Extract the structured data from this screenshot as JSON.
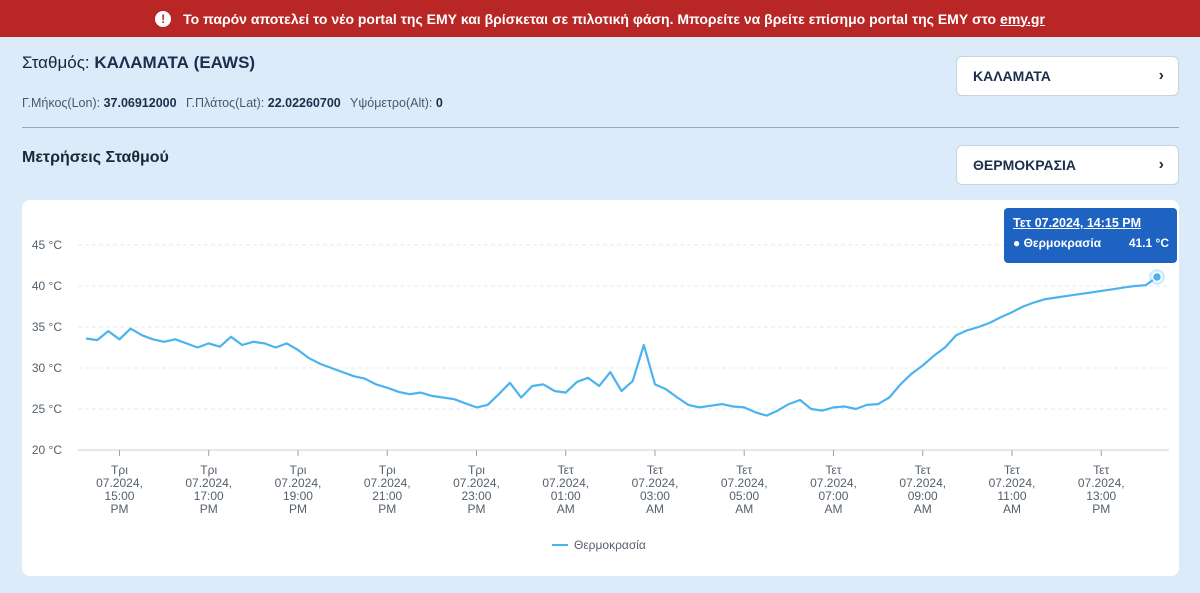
{
  "banner": {
    "icon": "exclamation-icon",
    "text": "Το παρόν αποτελεί το νέο portal της ΕΜΥ και βρίσκεται σε πιλοτική φάση. Μπορείτε να βρείτε επίσημο portal της ΕΜΥ στο",
    "link": "emy.gr",
    "color": "#b82626"
  },
  "station": {
    "label": "Σταθμός:",
    "name": "ΚΑΛΑΜΑΤΑ (EAWS)",
    "lon_label": "Γ.Μήκος(Lon):",
    "lon_value": "37.06912000",
    "lat_label": "Γ.Πλάτος(Lat):",
    "lat_value": "22.02260700",
    "alt_label": "Υψόμετρο(Alt):",
    "alt_value": "0"
  },
  "station_select": {
    "value": "ΚΑΛΑΜΑΤΑ",
    "icon": "chevron-right-icon"
  },
  "measurements": {
    "title": "Μετρήσεις Σταθμού",
    "select_value": "ΘΕΡΜΟΚΡΑΣΙΑ",
    "icon": "chevron-right-icon"
  },
  "tooltip": {
    "header": "Τετ 07.2024, 14:15 PM",
    "series": "Θερμοκρασία",
    "value": "41.1 °C"
  },
  "chart_data": {
    "type": "line",
    "title": "",
    "xlabel": "",
    "ylabel": "",
    "ylim": [
      20,
      45
    ],
    "y_ticks": [
      "20 °C",
      "25 °C",
      "30 °C",
      "35 °C",
      "40 °C",
      "45 °C"
    ],
    "y_tick_values": [
      20,
      25,
      30,
      35,
      40,
      45
    ],
    "x_range_hours": [
      14.25,
      38.25
    ],
    "x_ticks": [
      {
        "x": 15,
        "label": [
          "Τρι",
          "07.2024,",
          "15:00",
          "PM"
        ]
      },
      {
        "x": 17,
        "label": [
          "Τρι",
          "07.2024,",
          "17:00",
          "PM"
        ]
      },
      {
        "x": 19,
        "label": [
          "Τρι",
          "07.2024,",
          "19:00",
          "PM"
        ]
      },
      {
        "x": 21,
        "label": [
          "Τρι",
          "07.2024,",
          "21:00",
          "PM"
        ]
      },
      {
        "x": 23,
        "label": [
          "Τρι",
          "07.2024,",
          "23:00",
          "PM"
        ]
      },
      {
        "x": 25,
        "label": [
          "Τετ",
          "07.2024,",
          "01:00",
          "AM"
        ]
      },
      {
        "x": 27,
        "label": [
          "Τετ",
          "07.2024,",
          "03:00",
          "AM"
        ]
      },
      {
        "x": 29,
        "label": [
          "Τετ",
          "07.2024,",
          "05:00",
          "AM"
        ]
      },
      {
        "x": 31,
        "label": [
          "Τετ",
          "07.2024,",
          "07:00",
          "AM"
        ]
      },
      {
        "x": 33,
        "label": [
          "Τετ",
          "07.2024,",
          "09:00",
          "AM"
        ]
      },
      {
        "x": 35,
        "label": [
          "Τετ",
          "07.2024,",
          "11:00",
          "AM"
        ]
      },
      {
        "x": 37,
        "label": [
          "Τετ",
          "07.2024,",
          "13:00",
          "PM"
        ]
      }
    ],
    "series": [
      {
        "name": "Θερμοκρασία",
        "color": "#4bb3ee",
        "x": [
          14.25,
          14.5,
          14.75,
          15.0,
          15.25,
          15.5,
          15.75,
          16.0,
          16.25,
          16.5,
          16.75,
          17.0,
          17.25,
          17.5,
          17.75,
          18.0,
          18.25,
          18.5,
          18.75,
          19.0,
          19.25,
          19.5,
          19.75,
          20.0,
          20.25,
          20.5,
          20.75,
          21.0,
          21.25,
          21.5,
          21.75,
          22.0,
          22.25,
          22.5,
          22.75,
          23.0,
          23.25,
          23.5,
          23.75,
          24.0,
          24.25,
          24.5,
          24.75,
          25.0,
          25.25,
          25.5,
          25.75,
          26.0,
          26.25,
          26.5,
          26.75,
          27.0,
          27.25,
          27.5,
          27.75,
          28.0,
          28.25,
          28.5,
          28.75,
          29.0,
          29.25,
          29.5,
          29.75,
          30.0,
          30.25,
          30.5,
          30.75,
          31.0,
          31.25,
          31.5,
          31.75,
          32.0,
          32.25,
          32.5,
          32.75,
          33.0,
          33.25,
          33.5,
          33.75,
          34.0,
          34.25,
          34.5,
          34.75,
          35.0,
          35.25,
          35.5,
          35.75,
          36.0,
          36.25,
          36.5,
          36.75,
          37.0,
          37.25,
          37.5,
          37.75,
          38.0,
          38.25
        ],
        "values": [
          33.6,
          33.4,
          34.5,
          33.5,
          34.8,
          34.0,
          33.5,
          33.2,
          33.5,
          33.0,
          32.5,
          33.0,
          32.6,
          33.8,
          32.8,
          33.2,
          33.0,
          32.5,
          33.0,
          32.2,
          31.2,
          30.5,
          30.0,
          29.5,
          29.0,
          28.7,
          28.0,
          27.6,
          27.1,
          26.8,
          27.0,
          26.6,
          26.4,
          26.2,
          25.7,
          25.2,
          25.5,
          26.8,
          28.2,
          26.4,
          27.8,
          28.0,
          27.2,
          27.0,
          28.3,
          28.8,
          27.8,
          29.5,
          27.2,
          28.4,
          32.8,
          28.0,
          27.4,
          26.4,
          25.5,
          25.2,
          25.4,
          25.6,
          25.3,
          25.2,
          24.6,
          24.2,
          24.8,
          25.6,
          26.1,
          25.0,
          24.8,
          25.2,
          25.3,
          25.0,
          25.5,
          25.6,
          26.4,
          28.0,
          29.3,
          30.3,
          31.5,
          32.5,
          34.0,
          34.6,
          35.0,
          35.5,
          36.2,
          36.8,
          37.5,
          38.0,
          38.4,
          38.6,
          38.8,
          39.0,
          39.2,
          39.4,
          39.6,
          39.8,
          40.0,
          40.1,
          41.1
        ]
      }
    ],
    "legend": {
      "position": "bottom",
      "entries": [
        "Θερμοκρασία"
      ]
    },
    "grid": true
  }
}
